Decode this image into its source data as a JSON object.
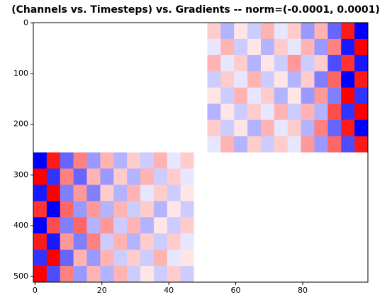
{
  "chart_data": {
    "type": "heatmap",
    "title": "(Channels vs. Timesteps) vs. Gradients -- norm=(-0.0001, 0.0001)",
    "colormap": "bwr",
    "norm": [
      -0.0001,
      0.0001
    ],
    "xlim": [
      -0.5,
      99.5
    ],
    "ylim": [
      511.5,
      -0.5
    ],
    "xticks": [
      0,
      20,
      40,
      60,
      80
    ],
    "yticks": [
      0,
      100,
      200,
      300,
      400,
      500
    ],
    "values": [
      [
        0,
        0,
        0,
        0,
        0,
        0,
        0,
        0,
        0,
        0,
        0,
        0,
        0,
        2e-05,
        -3e-05,
        1e-05,
        -2e-05,
        3e-05,
        -1e-05,
        2e-05,
        -4e-05,
        3e-05,
        -6e-05,
        9e-05,
        -0.0001
      ],
      [
        0,
        0,
        0,
        0,
        0,
        0,
        0,
        0,
        0,
        0,
        0,
        0,
        0,
        -1e-05,
        3e-05,
        -2e-05,
        1e-05,
        -3e-05,
        2e-05,
        -1e-05,
        3e-05,
        -4e-05,
        5e-05,
        -9e-05,
        0.0001
      ],
      [
        0,
        0,
        0,
        0,
        0,
        0,
        0,
        0,
        0,
        0,
        0,
        0,
        0,
        3e-05,
        -1e-05,
        2e-05,
        -3e-05,
        1e-05,
        -2e-05,
        4e-05,
        -2e-05,
        2e-05,
        -7e-05,
        8e-05,
        -9e-05
      ],
      [
        0,
        0,
        0,
        0,
        0,
        0,
        0,
        0,
        0,
        0,
        0,
        0,
        0,
        -2e-05,
        2e-05,
        -1e-05,
        3e-05,
        -2e-05,
        1e-05,
        -3e-05,
        2e-05,
        -5e-05,
        6e-05,
        -0.0001,
        9e-05
      ],
      [
        0,
        0,
        0,
        0,
        0,
        0,
        0,
        0,
        0,
        0,
        0,
        0,
        0,
        1e-05,
        -2e-05,
        3e-05,
        -1e-05,
        2e-05,
        -3e-05,
        1e-05,
        -4e-05,
        4e-05,
        -5e-05,
        0.0001,
        -8e-05
      ],
      [
        0,
        0,
        0,
        0,
        0,
        0,
        0,
        0,
        0,
        0,
        0,
        0,
        0,
        -3e-05,
        1e-05,
        -2e-05,
        2e-05,
        -1e-05,
        3e-05,
        -2e-05,
        3e-05,
        -3e-05,
        7e-05,
        -8e-05,
        0.0001
      ],
      [
        0,
        0,
        0,
        0,
        0,
        0,
        0,
        0,
        0,
        0,
        0,
        0,
        0,
        2e-05,
        -2e-05,
        1e-05,
        -3e-05,
        3e-05,
        -1e-05,
        2e-05,
        -3e-05,
        5e-05,
        -6e-05,
        9e-05,
        -0.0001
      ],
      [
        0,
        0,
        0,
        0,
        0,
        0,
        0,
        0,
        0,
        0,
        0,
        0,
        0,
        -1e-05,
        3e-05,
        -3e-05,
        2e-05,
        -2e-05,
        2e-05,
        -1e-05,
        4e-05,
        -4e-05,
        6e-05,
        -7e-05,
        9e-05
      ],
      [
        -0.0001,
        9e-05,
        -6e-05,
        5e-05,
        -4e-05,
        3e-05,
        -3e-05,
        2e-05,
        -2e-05,
        3e-05,
        -1e-05,
        2e-05,
        0,
        0,
        0,
        0,
        0,
        0,
        0,
        0,
        0,
        0,
        0,
        0,
        0
      ],
      [
        0.0001,
        -8e-05,
        5e-05,
        -6e-05,
        3e-05,
        -4e-05,
        2e-05,
        -3e-05,
        3e-05,
        -2e-05,
        2e-05,
        -1e-05,
        0,
        0,
        0,
        0,
        0,
        0,
        0,
        0,
        0,
        0,
        0,
        0,
        0
      ],
      [
        -9e-05,
        0.0001,
        -5e-05,
        4e-05,
        -5e-05,
        2e-05,
        -3e-05,
        3e-05,
        -1e-05,
        2e-05,
        -2e-05,
        1e-05,
        0,
        0,
        0,
        0,
        0,
        0,
        0,
        0,
        0,
        0,
        0,
        0,
        0
      ],
      [
        8e-05,
        -0.0001,
        6e-05,
        -4e-05,
        4e-05,
        -3e-05,
        3e-05,
        -2e-05,
        2e-05,
        -3e-05,
        1e-05,
        -2e-05,
        0,
        0,
        0,
        0,
        0,
        0,
        0,
        0,
        0,
        0,
        0,
        0,
        0
      ],
      [
        -0.0001,
        7e-05,
        -5e-05,
        6e-05,
        -3e-05,
        4e-05,
        -2e-05,
        3e-05,
        -3e-05,
        1e-05,
        -2e-05,
        2e-05,
        0,
        0,
        0,
        0,
        0,
        0,
        0,
        0,
        0,
        0,
        0,
        0,
        0
      ],
      [
        9e-05,
        -9e-05,
        4e-05,
        -5e-05,
        5e-05,
        -2e-05,
        3e-05,
        -3e-05,
        2e-05,
        -2e-05,
        2e-05,
        -1e-05,
        0,
        0,
        0,
        0,
        0,
        0,
        0,
        0,
        0,
        0,
        0,
        0,
        0
      ],
      [
        -8e-05,
        0.0001,
        -6e-05,
        3e-05,
        -4e-05,
        3e-05,
        -2e-05,
        2e-05,
        -2e-05,
        3e-05,
        -1e-05,
        1e-05,
        0,
        0,
        0,
        0,
        0,
        0,
        0,
        0,
        0,
        0,
        0,
        0,
        0
      ],
      [
        0.0001,
        -7e-05,
        5e-05,
        -4e-05,
        3e-05,
        -3e-05,
        3e-05,
        -2e-05,
        1e-05,
        -2e-05,
        2e-05,
        -2e-05,
        0,
        0,
        0,
        0,
        0,
        0,
        0,
        0,
        0,
        0,
        0,
        0,
        0
      ]
    ]
  }
}
